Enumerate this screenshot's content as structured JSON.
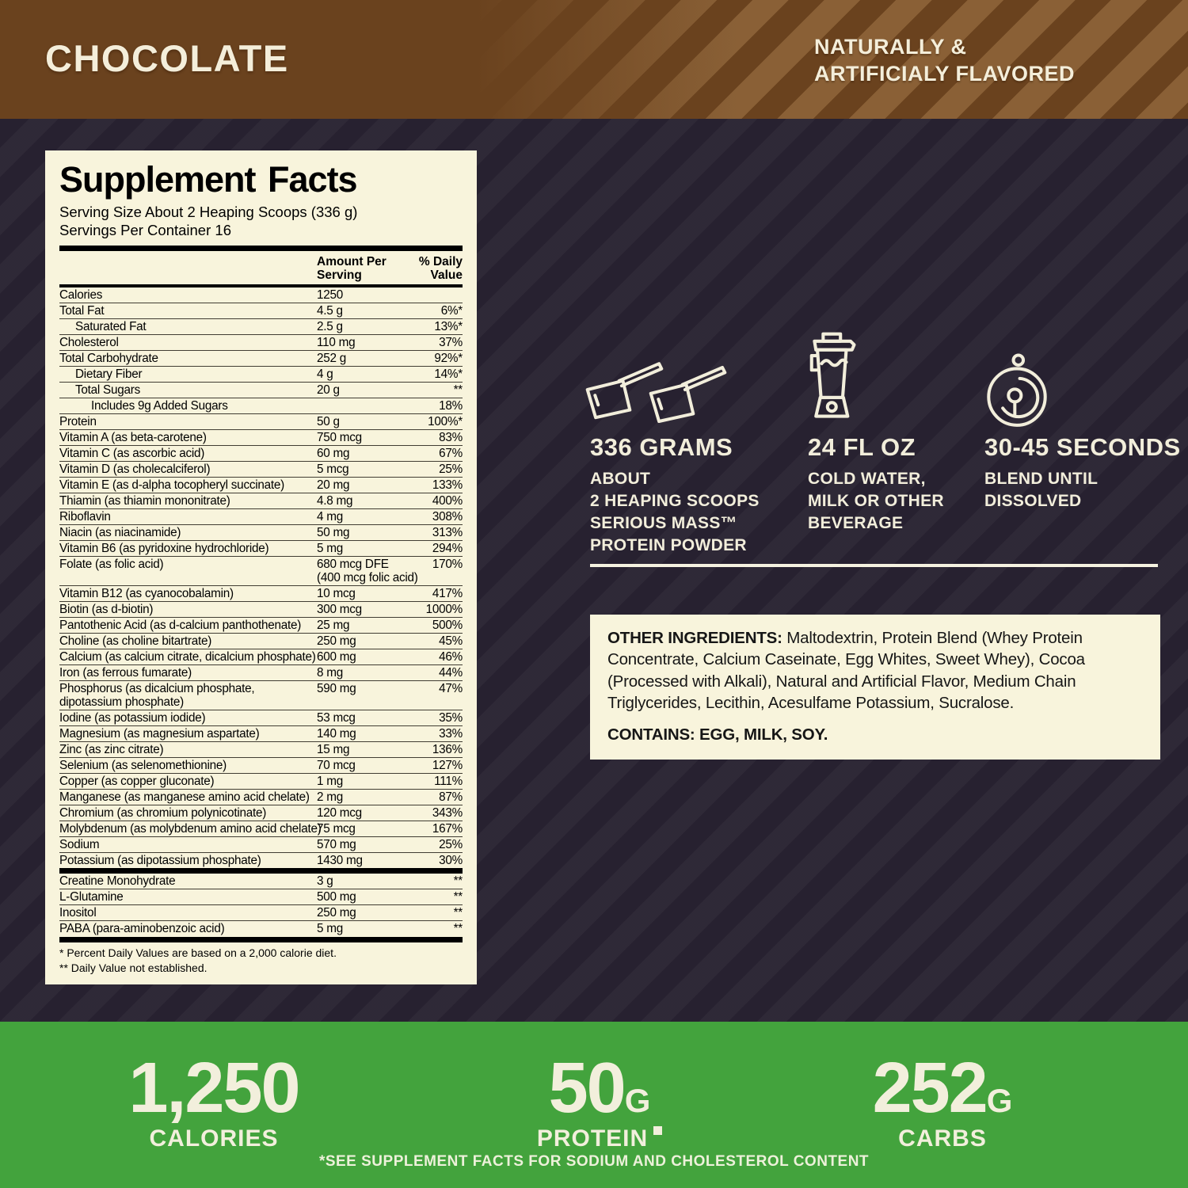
{
  "colors": {
    "brown": "#6a421e",
    "dark": "#272130",
    "cream": "#f8f4dc",
    "green": "#43a33d",
    "text_cream": "#f2eedb"
  },
  "banner": {
    "flavor": "CHOCOLATE",
    "note": "NATURALLY &\nARTIFICIALY FLAVORED"
  },
  "panel": {
    "title": "Supplement Facts",
    "serving_size": "Serving Size About 2 Heaping Scoops (336 g)",
    "servings_per_container": "Servings Per Container 16",
    "col_amount": "Amount Per\nServing",
    "col_dv": "% Daily\nValue",
    "rows": [
      {
        "n": "Calories",
        "a": "1250",
        "d": ""
      },
      {
        "n": "Total Fat",
        "a": "4.5 g",
        "d": "6%*"
      },
      {
        "n": "Saturated Fat",
        "a": "2.5 g",
        "d": "13%*",
        "i": 1
      },
      {
        "n": "Cholesterol",
        "a": "110 mg",
        "d": "37%"
      },
      {
        "n": "Total Carbohydrate",
        "a": "252 g",
        "d": "92%*"
      },
      {
        "n": "Dietary Fiber",
        "a": "4 g",
        "d": "14%*",
        "i": 1
      },
      {
        "n": "Total Sugars",
        "a": "20 g",
        "d": "**",
        "i": 1
      },
      {
        "n": "Includes 9g Added Sugars",
        "a": "",
        "d": "18%",
        "i": 2
      },
      {
        "n": "Protein",
        "a": "50 g",
        "d": "100%*"
      },
      {
        "n": "Vitamin A (as beta-carotene)",
        "a": "750 mcg",
        "d": "83%"
      },
      {
        "n": "Vitamin C (as ascorbic acid)",
        "a": "60 mg",
        "d": "67%"
      },
      {
        "n": "Vitamin D (as cholecalciferol)",
        "a": "5 mcg",
        "d": "25%"
      },
      {
        "n": "Vitamin E (as d-alpha tocopheryl succinate)",
        "a": "20 mg",
        "d": "133%"
      },
      {
        "n": "Thiamin (as thiamin mononitrate)",
        "a": "4.8 mg",
        "d": "400%"
      },
      {
        "n": "Riboflavin",
        "a": "4 mg",
        "d": "308%"
      },
      {
        "n": "Niacin (as niacinamide)",
        "a": "50 mg",
        "d": "313%"
      },
      {
        "n": "Vitamin B6 (as pyridoxine hydrochloride)",
        "a": "5 mg",
        "d": "294%"
      },
      {
        "n": "Folate (as folic acid)",
        "a": "680 mcg DFE",
        "a2": "(400 mcg folic acid)",
        "d": "170%"
      },
      {
        "n": "Vitamin B12 (as cyanocobalamin)",
        "a": "10 mcg",
        "d": "417%"
      },
      {
        "n": "Biotin (as d-biotin)",
        "a": "300 mcg",
        "d": "1000%"
      },
      {
        "n": "Pantothenic Acid (as d-calcium panthothenate)",
        "a": "25 mg",
        "d": "500%"
      },
      {
        "n": "Choline (as choline bitartrate)",
        "a": "250 mg",
        "d": "45%"
      },
      {
        "n": "Calcium (as calcium citrate, dicalcium phosphate)",
        "a": "600 mg",
        "d": "46%"
      },
      {
        "n": "Iron (as ferrous fumarate)",
        "a": "8 mg",
        "d": "44%"
      },
      {
        "n": "Phosphorus (as dicalcium phosphate,",
        "n2": "dipotassium phosphate)",
        "a": "590 mg",
        "d": "47%"
      },
      {
        "n": "Iodine (as potassium iodide)",
        "a": "53 mcg",
        "d": "35%"
      },
      {
        "n": "Magnesium (as magnesium aspartate)",
        "a": "140 mg",
        "d": "33%"
      },
      {
        "n": "Zinc (as zinc citrate)",
        "a": "15 mg",
        "d": "136%"
      },
      {
        "n": "Selenium (as selenomethionine)",
        "a": "70 mcg",
        "d": "127%"
      },
      {
        "n": "Copper (as copper gluconate)",
        "a": "1 mg",
        "d": "111%"
      },
      {
        "n": "Manganese (as manganese amino acid chelate)",
        "a": "2 mg",
        "d": "87%"
      },
      {
        "n": "Chromium (as chromium polynicotinate)",
        "a": "120 mcg",
        "d": "343%"
      },
      {
        "n": "Molybdenum (as molybdenum amino acid chelate)",
        "a": "75 mcg",
        "d": "167%"
      },
      {
        "n": "Sodium",
        "a": "570 mg",
        "d": "25%"
      },
      {
        "n": "Potassium (as dipotassium phosphate)",
        "a": "1430 mg",
        "d": "30%"
      },
      {
        "n": "Creatine Monohydrate",
        "a": "3 g",
        "d": "**",
        "sep": true
      },
      {
        "n": "L-Glutamine",
        "a": "500 mg",
        "d": "**"
      },
      {
        "n": "Inositol",
        "a": "250 mg",
        "d": "**"
      },
      {
        "n": "PABA (para-aminobenzoic acid)",
        "a": "5 mg",
        "d": "**"
      }
    ],
    "footnotes": [
      "* Percent Daily Values are based on a 2,000 calorie diet.",
      "** Daily Value not established."
    ]
  },
  "directions": [
    {
      "icon": "scoops-icon",
      "headline": "336 GRAMS",
      "lines": "ABOUT\n2 HEAPING SCOOPS\nSERIOUS MASS™\nPROTEIN POWDER"
    },
    {
      "icon": "blender-icon",
      "headline": "24 FL OZ",
      "lines": "COLD WATER,\nMILK OR OTHER\nBEVERAGE"
    },
    {
      "icon": "stopwatch-icon",
      "headline": "30-45 SECONDS",
      "lines": "BLEND UNTIL\nDISSOLVED"
    }
  ],
  "ingredients": {
    "label": "OTHER INGREDIENTS:",
    "text": "Maltodextrin, Protein Blend (Whey Protein Concentrate, Calcium Caseinate, Egg Whites, Sweet Whey), Cocoa (Processed with Alkali), Natural and Artificial Flavor, Medium Chain Triglycerides, Lecithin, Acesulfame Potassium, Sucralose.",
    "contains": "CONTAINS: EGG, MILK, SOY."
  },
  "macros": [
    {
      "value": "1,250",
      "unit": "",
      "label": "CALORIES"
    },
    {
      "value": "50",
      "unit": "G",
      "label": "PROTEIN"
    },
    {
      "value": "252",
      "unit": "G",
      "label": "CARBS"
    }
  ],
  "green_footnote": "*SEE SUPPLEMENT FACTS FOR SODIUM AND CHOLESTEROL CONTENT"
}
